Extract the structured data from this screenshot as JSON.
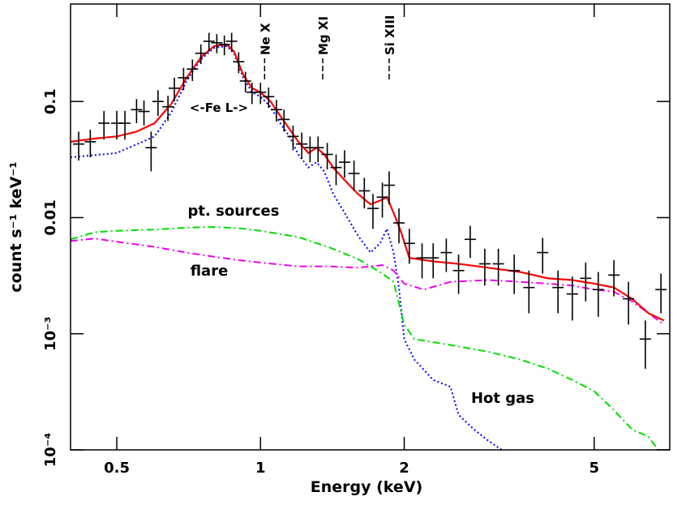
{
  "chart_data": {
    "type": "spectrum",
    "xlabel": "Energy (keV)",
    "ylabel": "count s⁻¹ keV⁻¹",
    "xlog": true,
    "ylog": true,
    "xlim": [
      0.4,
      7.2
    ],
    "ylim": [
      0.0001,
      0.69
    ],
    "xticks": [
      0.5,
      1,
      2,
      5
    ],
    "yticks": [
      {
        "value": 0.0001,
        "label": "10⁻⁴"
      },
      {
        "value": 0.001,
        "label": "10⁻³"
      },
      0.01,
      0.1
    ],
    "data": {
      "color": "#000000",
      "x": [
        0.416,
        0.44,
        0.47,
        0.5,
        0.52,
        0.55,
        0.57,
        0.59,
        0.61,
        0.64,
        0.66,
        0.69,
        0.72,
        0.75,
        0.78,
        0.81,
        0.84,
        0.87,
        0.9,
        0.93,
        0.96,
        1.0,
        1.04,
        1.08,
        1.12,
        1.17,
        1.22,
        1.27,
        1.32,
        1.38,
        1.44,
        1.5,
        1.57,
        1.65,
        1.72,
        1.8,
        1.86,
        1.95,
        2.05,
        2.18,
        2.3,
        2.45,
        2.6,
        2.75,
        2.95,
        3.15,
        3.4,
        3.65,
        3.9,
        4.2,
        4.5,
        4.8,
        5.1,
        5.5,
        5.9,
        6.4,
        6.9
      ],
      "values": [
        0.043,
        0.045,
        0.065,
        0.065,
        0.065,
        0.085,
        0.082,
        0.04,
        0.1,
        0.09,
        0.13,
        0.16,
        0.19,
        0.26,
        0.33,
        0.32,
        0.31,
        0.33,
        0.22,
        0.15,
        0.12,
        0.12,
        0.11,
        0.085,
        0.07,
        0.05,
        0.043,
        0.04,
        0.04,
        0.035,
        0.027,
        0.03,
        0.024,
        0.017,
        0.012,
        0.015,
        0.019,
        0.009,
        0.006,
        0.0045,
        0.0045,
        0.005,
        0.0035,
        0.0065,
        0.004,
        0.004,
        0.0035,
        0.0025,
        0.005,
        0.0025,
        0.0022,
        0.003,
        0.0024,
        0.0032,
        0.002,
        0.0009,
        0.0024
      ],
      "errors": [
        0.012,
        0.012,
        0.018,
        0.018,
        0.018,
        0.02,
        0.02,
        0.015,
        0.025,
        0.022,
        0.03,
        0.035,
        0.04,
        0.05,
        0.06,
        0.06,
        0.06,
        0.06,
        0.045,
        0.03,
        0.025,
        0.025,
        0.022,
        0.018,
        0.015,
        0.012,
        0.011,
        0.01,
        0.01,
        0.009,
        0.008,
        0.008,
        0.007,
        0.005,
        0.004,
        0.005,
        0.006,
        0.003,
        0.002,
        0.0015,
        0.0015,
        0.0016,
        0.0013,
        0.002,
        0.0014,
        0.0014,
        0.0013,
        0.001,
        0.0017,
        0.001,
        0.0009,
        0.0011,
        0.001,
        0.0011,
        0.0008,
        0.0004,
        0.0009
      ]
    },
    "models": [
      {
        "color": "#0000ff",
        "style": "dotted",
        "x": [
          0.4,
          0.5,
          0.6,
          0.65,
          0.7,
          0.75,
          0.8,
          0.85,
          0.88,
          0.92,
          0.96,
          1.0,
          1.05,
          1.1,
          1.15,
          1.2,
          1.26,
          1.31,
          1.36,
          1.42,
          1.5,
          1.6,
          1.7,
          1.78,
          1.84,
          1.9,
          1.95,
          2.0,
          2.1,
          2.3,
          2.5,
          2.6,
          2.8,
          3.0,
          3.2
        ],
        "values": [
          0.033,
          0.036,
          0.05,
          0.08,
          0.15,
          0.23,
          0.29,
          0.3,
          0.26,
          0.16,
          0.12,
          0.11,
          0.09,
          0.065,
          0.05,
          0.035,
          0.027,
          0.03,
          0.025,
          0.016,
          0.011,
          0.007,
          0.005,
          0.006,
          0.008,
          0.005,
          0.0025,
          0.0009,
          0.0006,
          0.0004,
          0.00035,
          0.0002,
          0.00015,
          0.00012,
          0.0001
        ]
      },
      {
        "color": "#00dd00",
        "style": "dashdot",
        "x": [
          0.4,
          0.45,
          0.5,
          0.6,
          0.7,
          0.8,
          0.9,
          1.0,
          1.2,
          1.4,
          1.6,
          1.8,
          1.9,
          2.0,
          2.1,
          2.5,
          3.0,
          3.5,
          4.0,
          4.5,
          5.0,
          5.5,
          6.0,
          6.5,
          6.8
        ],
        "values": [
          0.0065,
          0.0075,
          0.0077,
          0.0079,
          0.0082,
          0.0083,
          0.0081,
          0.0077,
          0.0068,
          0.0055,
          0.0044,
          0.0033,
          0.0028,
          0.0012,
          0.0009,
          0.0008,
          0.0007,
          0.0006,
          0.0005,
          0.0004,
          0.00032,
          0.00022,
          0.00015,
          0.00013,
          0.0001
        ]
      },
      {
        "color": "#ee00ee",
        "style": "dashdot",
        "x": [
          0.4,
          0.45,
          0.5,
          0.6,
          0.7,
          0.8,
          0.9,
          1.0,
          1.2,
          1.4,
          1.6,
          1.8,
          1.9,
          2.0,
          2.2,
          2.5,
          3.0,
          3.5,
          4.0,
          4.5,
          5.0,
          5.5,
          6.0,
          6.5,
          7.0
        ],
        "values": [
          0.0063,
          0.0066,
          0.0062,
          0.0056,
          0.005,
          0.0046,
          0.0043,
          0.0041,
          0.0038,
          0.0038,
          0.0037,
          0.0039,
          0.0035,
          0.0027,
          0.0024,
          0.0028,
          0.0029,
          0.0028,
          0.0027,
          0.0026,
          0.0024,
          0.0023,
          0.0019,
          0.0015,
          0.0012
        ]
      },
      {
        "color": "#ff0000",
        "style": "solid",
        "x": [
          0.4,
          0.45,
          0.5,
          0.55,
          0.6,
          0.65,
          0.7,
          0.75,
          0.8,
          0.85,
          0.88,
          0.92,
          0.96,
          1.0,
          1.05,
          1.1,
          1.15,
          1.2,
          1.26,
          1.31,
          1.36,
          1.42,
          1.5,
          1.6,
          1.7,
          1.78,
          1.84,
          1.9,
          1.97,
          2.05,
          2.3,
          2.6,
          3.0,
          3.5,
          4.0,
          4.5,
          5.0,
          5.5,
          6.0,
          6.5,
          7.0
        ],
        "values": [
          0.045,
          0.048,
          0.05,
          0.055,
          0.065,
          0.095,
          0.16,
          0.24,
          0.3,
          0.31,
          0.27,
          0.17,
          0.13,
          0.12,
          0.1,
          0.075,
          0.058,
          0.045,
          0.036,
          0.04,
          0.035,
          0.027,
          0.021,
          0.016,
          0.013,
          0.014,
          0.015,
          0.011,
          0.0075,
          0.0045,
          0.0042,
          0.004,
          0.0037,
          0.0034,
          0.003,
          0.0029,
          0.0027,
          0.0025,
          0.002,
          0.0015,
          0.0013
        ]
      }
    ],
    "lines": [
      {
        "label": "Ne X",
        "energy": 1.02
      },
      {
        "label": "Mg XI",
        "energy": 1.35
      },
      {
        "label": "Si XIII",
        "energy": 1.86
      }
    ],
    "annotations": [
      "<-Fe L->",
      "pt. sources",
      "flare",
      "Hot gas"
    ]
  }
}
